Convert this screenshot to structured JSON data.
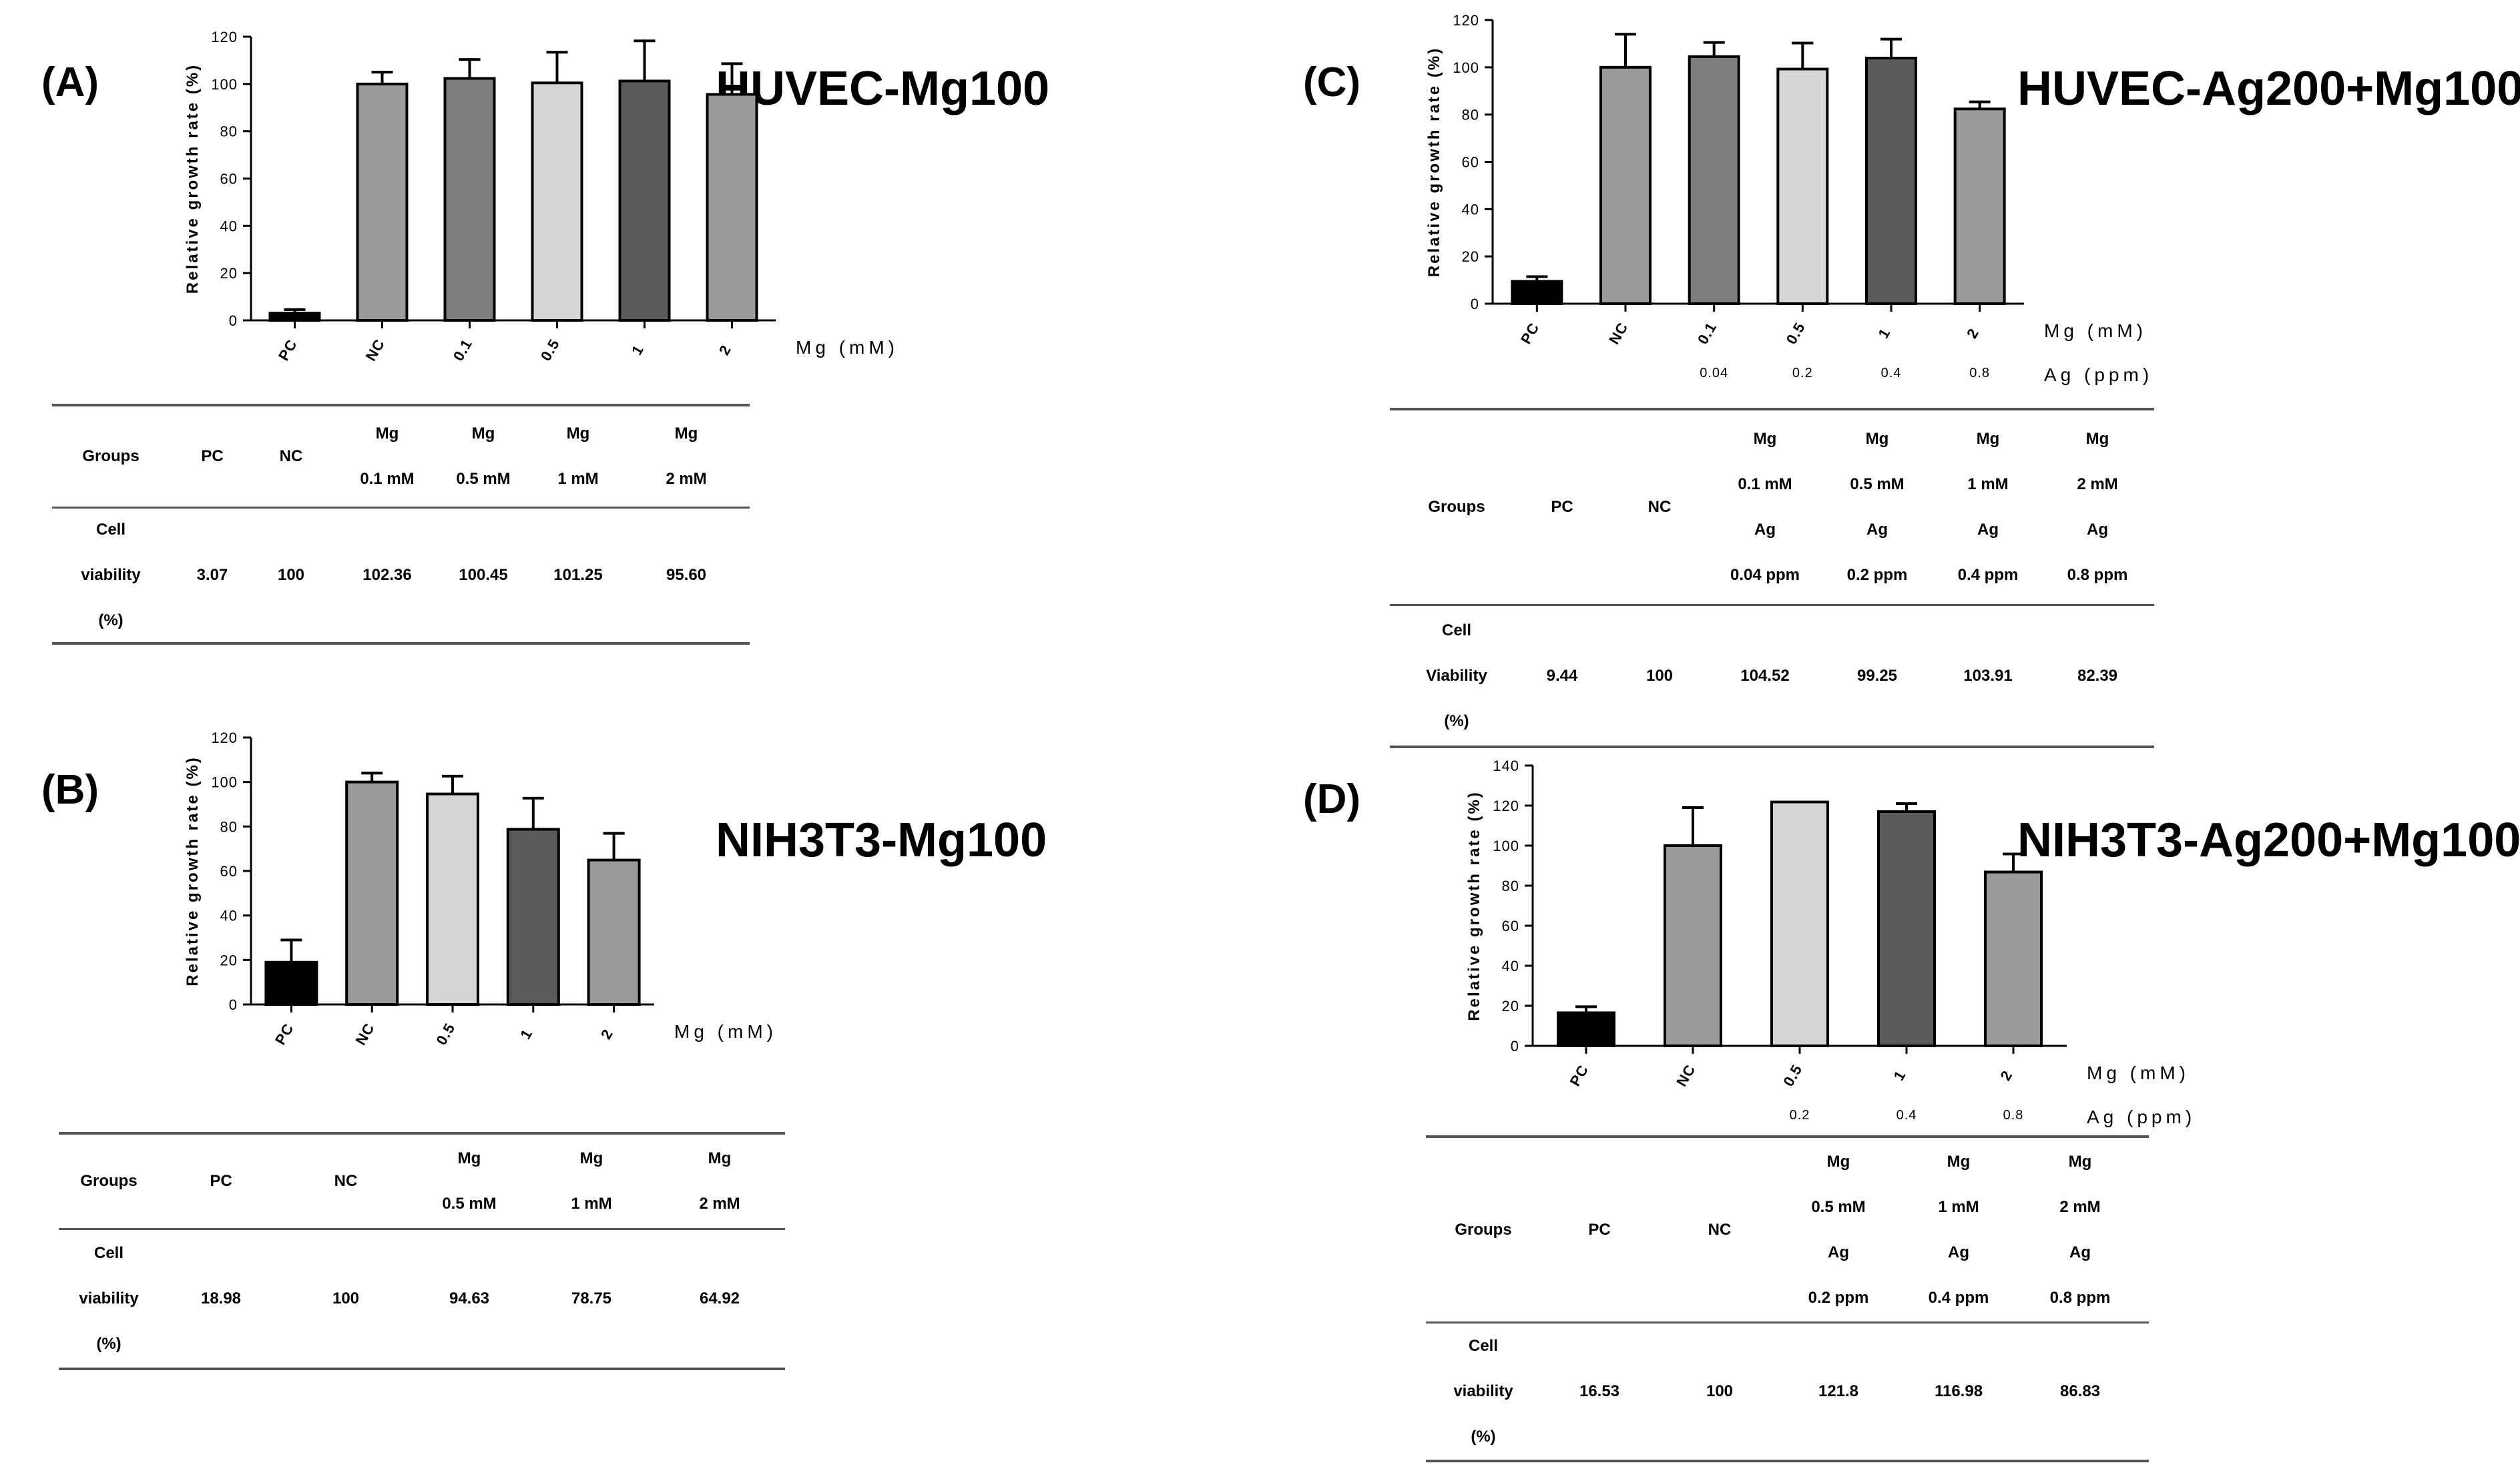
{
  "colors": {
    "pc": "#000000",
    "nc": "#9a9a9e",
    "light": "#d6d6d6",
    "mid": "#7e7e7e",
    "dark": "#5a5a5a",
    "axis": "#000000",
    "rule": "#555555"
  },
  "panels": {
    "A": {
      "label": "(A)",
      "title": "HUVEC-Mg100",
      "ylabel": "Relative growth rate (%)",
      "units": [
        "Mg (mM)"
      ],
      "categories": [
        [
          "PC"
        ],
        [
          "NC"
        ],
        [
          "0.1"
        ],
        [
          "0.5"
        ],
        [
          "1"
        ],
        [
          "2"
        ]
      ],
      "table": {
        "header": [
          [
            "Groups"
          ],
          [
            "PC"
          ],
          [
            "NC"
          ],
          [
            "Mg",
            "0.1 mM"
          ],
          [
            "Mg",
            "0.5 mM"
          ],
          [
            "Mg",
            "1 mM"
          ],
          [
            "Mg",
            "2 mM"
          ]
        ],
        "row": [
          [
            "Cell",
            "viability",
            "(%)"
          ],
          [
            "3.07"
          ],
          [
            "100"
          ],
          [
            "102.36"
          ],
          [
            "100.45"
          ],
          [
            "101.25"
          ],
          [
            "95.60"
          ]
        ]
      }
    },
    "B": {
      "label": "(B)",
      "title": "NIH3T3-Mg100",
      "ylabel": "Relative growth rate (%)",
      "units": [
        "Mg (mM)"
      ],
      "categories": [
        [
          "PC"
        ],
        [
          "NC"
        ],
        [
          "0.5"
        ],
        [
          "1"
        ],
        [
          "2"
        ]
      ],
      "table": {
        "header": [
          [
            "Groups"
          ],
          [
            "PC"
          ],
          [
            "NC"
          ],
          [
            "Mg",
            "0.5 mM"
          ],
          [
            "Mg",
            "1 mM"
          ],
          [
            "Mg",
            "2 mM"
          ]
        ],
        "row": [
          [
            "Cell",
            "viability",
            "(%)"
          ],
          [
            "18.98"
          ],
          [
            "100"
          ],
          [
            "94.63"
          ],
          [
            "78.75"
          ],
          [
            "64.92"
          ]
        ]
      }
    },
    "C": {
      "label": "(C)",
      "title": "HUVEC-Ag200+Mg100",
      "ylabel": "Relative growth rate (%)",
      "units": [
        "Mg (mM)",
        "Ag (ppm)"
      ],
      "categories": [
        [
          "PC"
        ],
        [
          "NC"
        ],
        [
          "0.1",
          "0.04"
        ],
        [
          "0.5",
          "0.2"
        ],
        [
          "1",
          "0.4"
        ],
        [
          "2",
          "0.8"
        ]
      ],
      "table": {
        "header": [
          [
            "Groups"
          ],
          [
            "PC"
          ],
          [
            "NC"
          ],
          [
            "Mg",
            "0.1 mM",
            "Ag",
            "0.04 ppm"
          ],
          [
            "Mg",
            "0.5 mM",
            "Ag",
            "0.2 ppm"
          ],
          [
            "Mg",
            "1 mM",
            "Ag",
            "0.4 ppm"
          ],
          [
            "Mg",
            "2 mM",
            "Ag",
            "0.8 ppm"
          ]
        ],
        "row": [
          [
            "Cell",
            "Viability",
            "(%)"
          ],
          [
            "9.44"
          ],
          [
            "100"
          ],
          [
            "104.52"
          ],
          [
            "99.25"
          ],
          [
            "103.91"
          ],
          [
            "82.39"
          ]
        ]
      }
    },
    "D": {
      "label": "(D)",
      "title": "NIH3T3-Ag200+Mg100",
      "ylabel": "Relative growth rate (%)",
      "units": [
        "Mg (mM)",
        "Ag (ppm)"
      ],
      "categories": [
        [
          "PC"
        ],
        [
          "NC"
        ],
        [
          "0.5",
          "0.2"
        ],
        [
          "1",
          "0.4"
        ],
        [
          "2",
          "0.8"
        ]
      ],
      "table": {
        "header": [
          [
            "Groups"
          ],
          [
            "PC"
          ],
          [
            "NC"
          ],
          [
            "Mg",
            "0.5 mM",
            "Ag",
            "0.2 ppm"
          ],
          [
            "Mg",
            "1 mM",
            "Ag",
            "0.4 ppm"
          ],
          [
            "Mg",
            "2 mM",
            "Ag",
            "0.8 ppm"
          ]
        ],
        "row": [
          [
            "Cell",
            "viability",
            "(%)"
          ],
          [
            "16.53"
          ],
          [
            "100"
          ],
          [
            "121.8"
          ],
          [
            "116.98"
          ],
          [
            "86.83"
          ]
        ]
      }
    }
  },
  "chart_data": [
    {
      "id": "A",
      "type": "bar",
      "title": "HUVEC-Mg100",
      "xlabel": "Mg (mM)",
      "ylabel": "Relative growth rate (%)",
      "ylim": [
        0,
        120
      ],
      "yticks": [
        0,
        20,
        40,
        60,
        80,
        100,
        120
      ],
      "categories": [
        "PC",
        "NC",
        "0.1",
        "0.5",
        "1",
        "2"
      ],
      "values": [
        3.07,
        100,
        102.36,
        100.45,
        101.25,
        95.6
      ],
      "errors": [
        1.5,
        5,
        8,
        13,
        17,
        13
      ],
      "bar_colors": [
        "pc",
        "nc",
        "mid",
        "light",
        "dark",
        "nc"
      ]
    },
    {
      "id": "B",
      "type": "bar",
      "title": "NIH3T3-Mg100",
      "xlabel": "Mg (mM)",
      "ylabel": "Relative growth rate (%)",
      "ylim": [
        0,
        120
      ],
      "yticks": [
        0,
        20,
        40,
        60,
        80,
        100,
        120
      ],
      "categories": [
        "PC",
        "NC",
        "0.5",
        "1",
        "2"
      ],
      "values": [
        18.98,
        100,
        94.63,
        78.75,
        64.92
      ],
      "errors": [
        10,
        4,
        8,
        14,
        12
      ],
      "bar_colors": [
        "pc",
        "nc",
        "light",
        "dark",
        "nc"
      ]
    },
    {
      "id": "C",
      "type": "bar",
      "title": "HUVEC-Ag200+Mg100",
      "xlabel": "Mg (mM) / Ag (ppm)",
      "ylabel": "Relative growth rate (%)",
      "ylim": [
        0,
        120
      ],
      "yticks": [
        0,
        20,
        40,
        60,
        80,
        100,
        120
      ],
      "categories": [
        "PC",
        "NC",
        "0.1 / 0.04",
        "0.5 / 0.2",
        "1 / 0.4",
        "2 / 0.8"
      ],
      "values": [
        9.44,
        100,
        104.52,
        99.25,
        103.91,
        82.39
      ],
      "errors": [
        2,
        14,
        6,
        11,
        8,
        3
      ],
      "bar_colors": [
        "pc",
        "nc",
        "mid",
        "light",
        "dark",
        "nc"
      ]
    },
    {
      "id": "D",
      "type": "bar",
      "title": "NIH3T3-Ag200+Mg100",
      "xlabel": "Mg (mM) / Ag (ppm)",
      "ylabel": "Relative growth rate (%)",
      "ylim": [
        0,
        140
      ],
      "yticks": [
        0,
        20,
        40,
        60,
        80,
        100,
        120,
        140
      ],
      "categories": [
        "PC",
        "NC",
        "0.5 / 0.2",
        "1 / 0.4",
        "2 / 0.8"
      ],
      "values": [
        16.53,
        100,
        121.8,
        116.98,
        86.83
      ],
      "errors": [
        3,
        19,
        0,
        4,
        9
      ],
      "bar_colors": [
        "pc",
        "nc",
        "light",
        "dark",
        "nc"
      ]
    }
  ]
}
